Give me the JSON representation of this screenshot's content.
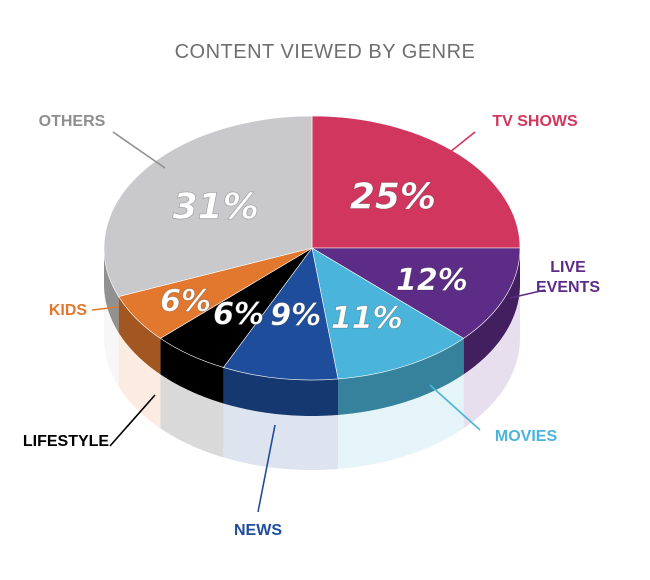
{
  "chart_data": {
    "type": "pie",
    "title": "CONTENT VIEWED BY GENRE",
    "slices": [
      {
        "label": "TV SHOWS",
        "value": 25,
        "value_label": "25%",
        "color": "#D1375E",
        "label_color": "#D1375E"
      },
      {
        "label": "LIVE EVENTS",
        "value": 12,
        "value_label": "12%",
        "color": "#5C2C86",
        "label_color": "#5C2C86"
      },
      {
        "label": "MOVIES",
        "value": 11,
        "value_label": "11%",
        "color": "#4BB4DA",
        "label_color": "#4BB4DA"
      },
      {
        "label": "NEWS",
        "value": 9,
        "value_label": "9%",
        "color": "#1E4E9B",
        "label_color": "#1E4E9B"
      },
      {
        "label": "LIFESTYLE",
        "value": 6,
        "value_label": "6%",
        "color": "#000000",
        "label_color": "#000000"
      },
      {
        "label": "KIDS",
        "value": 6,
        "value_label": "6%",
        "color": "#E1782E",
        "label_color": "#E1782E"
      },
      {
        "label": "OTHERS",
        "value": 31,
        "value_label": "31%",
        "color": "#C9C9CB",
        "label_color": "#8E8E8E"
      }
    ],
    "style": "3d-pie",
    "legend": "none"
  }
}
